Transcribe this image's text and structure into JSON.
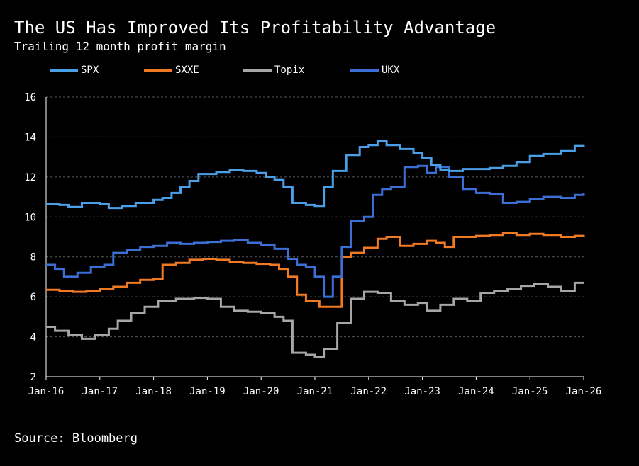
{
  "header": {
    "title": "The US Has Improved Its Profitability Advantage",
    "subtitle": "Trailing 12 month profit margin"
  },
  "footer": {
    "source": "Source: Bloomberg"
  },
  "chart_data": {
    "type": "line",
    "title": "The US Has Improved Its Profitability Advantage",
    "subtitle": "Trailing 12 month profit margin",
    "xlabel": "",
    "ylabel": "",
    "ylim": [
      2,
      16
    ],
    "yticks": [
      2,
      4,
      6,
      8,
      10,
      12,
      14,
      16
    ],
    "xlim": [
      "2016-01",
      "2026-01"
    ],
    "xticks": [
      "Jan-16",
      "Jan-17",
      "Jan-18",
      "Jan-19",
      "Jan-20",
      "Jan-21",
      "Jan-22",
      "Jan-23",
      "Jan-24",
      "Jan-25",
      "Jan-26"
    ],
    "grid": "horizontal dashed",
    "legend": "top-left",
    "series": [
      {
        "name": "SPX",
        "color": "#4a9fe6",
        "points": [
          [
            "2016-01",
            10.65
          ],
          [
            "2016-04",
            10.6
          ],
          [
            "2016-06",
            10.5
          ],
          [
            "2016-09",
            10.7
          ],
          [
            "2017-01",
            10.65
          ],
          [
            "2017-03",
            10.45
          ],
          [
            "2017-06",
            10.55
          ],
          [
            "2017-09",
            10.7
          ],
          [
            "2018-01",
            10.85
          ],
          [
            "2018-03",
            10.95
          ],
          [
            "2018-05",
            11.2
          ],
          [
            "2018-07",
            11.5
          ],
          [
            "2018-09",
            11.8
          ],
          [
            "2018-11",
            12.15
          ],
          [
            "2019-03",
            12.25
          ],
          [
            "2019-06",
            12.35
          ],
          [
            "2019-09",
            12.3
          ],
          [
            "2019-12",
            12.2
          ],
          [
            "2020-02",
            12.0
          ],
          [
            "2020-04",
            11.85
          ],
          [
            "2020-06",
            11.5
          ],
          [
            "2020-08",
            10.7
          ],
          [
            "2020-11",
            10.6
          ],
          [
            "2021-01",
            10.55
          ],
          [
            "2021-03",
            11.5
          ],
          [
            "2021-05",
            12.3
          ],
          [
            "2021-08",
            13.1
          ],
          [
            "2021-11",
            13.5
          ],
          [
            "2022-01",
            13.6
          ],
          [
            "2022-03",
            13.8
          ],
          [
            "2022-05",
            13.6
          ],
          [
            "2022-08",
            13.4
          ],
          [
            "2022-11",
            13.2
          ],
          [
            "2023-01",
            12.95
          ],
          [
            "2023-03",
            12.6
          ],
          [
            "2023-05",
            12.35
          ],
          [
            "2023-07",
            12.3
          ],
          [
            "2023-10",
            12.4
          ],
          [
            "2024-01",
            12.4
          ],
          [
            "2024-04",
            12.45
          ],
          [
            "2024-07",
            12.55
          ],
          [
            "2024-10",
            12.75
          ],
          [
            "2025-01",
            13.05
          ],
          [
            "2025-04",
            13.15
          ],
          [
            "2025-08",
            13.3
          ],
          [
            "2025-11",
            13.55
          ],
          [
            "2026-01",
            13.6
          ]
        ]
      },
      {
        "name": "SXXE",
        "color": "#f07a24",
        "points": [
          [
            "2016-01",
            6.35
          ],
          [
            "2016-04",
            6.3
          ],
          [
            "2016-07",
            6.25
          ],
          [
            "2016-10",
            6.3
          ],
          [
            "2017-01",
            6.4
          ],
          [
            "2017-04",
            6.5
          ],
          [
            "2017-07",
            6.7
          ],
          [
            "2017-10",
            6.85
          ],
          [
            "2018-01",
            6.9
          ],
          [
            "2018-03",
            7.6
          ],
          [
            "2018-06",
            7.7
          ],
          [
            "2018-09",
            7.85
          ],
          [
            "2018-12",
            7.9
          ],
          [
            "2019-03",
            7.85
          ],
          [
            "2019-06",
            7.75
          ],
          [
            "2019-09",
            7.7
          ],
          [
            "2019-12",
            7.65
          ],
          [
            "2020-03",
            7.6
          ],
          [
            "2020-05",
            7.4
          ],
          [
            "2020-07",
            7.0
          ],
          [
            "2020-09",
            6.1
          ],
          [
            "2020-11",
            5.8
          ],
          [
            "2021-02",
            5.5
          ],
          [
            "2021-05",
            5.5
          ],
          [
            "2021-07",
            8.0
          ],
          [
            "2021-09",
            8.2
          ],
          [
            "2021-12",
            8.45
          ],
          [
            "2022-03",
            8.9
          ],
          [
            "2022-05",
            9.0
          ],
          [
            "2022-08",
            8.55
          ],
          [
            "2022-11",
            8.65
          ],
          [
            "2023-02",
            8.8
          ],
          [
            "2023-04",
            8.7
          ],
          [
            "2023-06",
            8.5
          ],
          [
            "2023-08",
            9.0
          ],
          [
            "2024-01",
            9.05
          ],
          [
            "2024-04",
            9.1
          ],
          [
            "2024-07",
            9.2
          ],
          [
            "2024-10",
            9.1
          ],
          [
            "2025-01",
            9.15
          ],
          [
            "2025-04",
            9.1
          ],
          [
            "2025-08",
            9.0
          ],
          [
            "2025-11",
            9.05
          ],
          [
            "2026-01",
            9.1
          ]
        ]
      },
      {
        "name": "Topix",
        "color": "#a6a6a6",
        "points": [
          [
            "2016-01",
            4.5
          ],
          [
            "2016-03",
            4.3
          ],
          [
            "2016-06",
            4.1
          ],
          [
            "2016-09",
            3.9
          ],
          [
            "2016-12",
            4.1
          ],
          [
            "2017-03",
            4.4
          ],
          [
            "2017-05",
            4.8
          ],
          [
            "2017-08",
            5.2
          ],
          [
            "2017-11",
            5.5
          ],
          [
            "2018-02",
            5.8
          ],
          [
            "2018-06",
            5.9
          ],
          [
            "2018-10",
            5.95
          ],
          [
            "2019-01",
            5.9
          ],
          [
            "2019-04",
            5.5
          ],
          [
            "2019-07",
            5.3
          ],
          [
            "2019-10",
            5.25
          ],
          [
            "2020-01",
            5.2
          ],
          [
            "2020-04",
            5.0
          ],
          [
            "2020-06",
            4.8
          ],
          [
            "2020-08",
            3.2
          ],
          [
            "2020-11",
            3.1
          ],
          [
            "2021-01",
            3.0
          ],
          [
            "2021-03",
            3.4
          ],
          [
            "2021-06",
            4.7
          ],
          [
            "2021-09",
            5.9
          ],
          [
            "2021-12",
            6.25
          ],
          [
            "2022-03",
            6.2
          ],
          [
            "2022-06",
            5.8
          ],
          [
            "2022-09",
            5.6
          ],
          [
            "2022-12",
            5.7
          ],
          [
            "2023-02",
            5.3
          ],
          [
            "2023-05",
            5.6
          ],
          [
            "2023-08",
            5.9
          ],
          [
            "2023-11",
            5.8
          ],
          [
            "2024-02",
            6.2
          ],
          [
            "2024-05",
            6.3
          ],
          [
            "2024-08",
            6.4
          ],
          [
            "2024-11",
            6.55
          ],
          [
            "2025-02",
            6.65
          ],
          [
            "2025-05",
            6.5
          ],
          [
            "2025-08",
            6.3
          ],
          [
            "2025-11",
            6.7
          ],
          [
            "2026-01",
            6.7
          ]
        ]
      },
      {
        "name": "UKX",
        "color": "#3c6fd6",
        "points": [
          [
            "2016-01",
            7.6
          ],
          [
            "2016-03",
            7.4
          ],
          [
            "2016-05",
            7.0
          ],
          [
            "2016-08",
            7.2
          ],
          [
            "2016-11",
            7.5
          ],
          [
            "2017-02",
            7.6
          ],
          [
            "2017-04",
            8.2
          ],
          [
            "2017-07",
            8.35
          ],
          [
            "2017-10",
            8.5
          ],
          [
            "2018-01",
            8.55
          ],
          [
            "2018-04",
            8.7
          ],
          [
            "2018-07",
            8.65
          ],
          [
            "2018-10",
            8.7
          ],
          [
            "2019-01",
            8.75
          ],
          [
            "2019-04",
            8.8
          ],
          [
            "2019-07",
            8.85
          ],
          [
            "2019-10",
            8.7
          ],
          [
            "2020-01",
            8.6
          ],
          [
            "2020-04",
            8.4
          ],
          [
            "2020-07",
            7.9
          ],
          [
            "2020-09",
            7.6
          ],
          [
            "2020-11",
            7.5
          ],
          [
            "2021-01",
            7.0
          ],
          [
            "2021-03",
            6.0
          ],
          [
            "2021-05",
            7.0
          ],
          [
            "2021-07",
            8.5
          ],
          [
            "2021-09",
            9.8
          ],
          [
            "2021-12",
            10.0
          ],
          [
            "2022-02",
            11.1
          ],
          [
            "2022-04",
            11.4
          ],
          [
            "2022-06",
            11.5
          ],
          [
            "2022-09",
            12.5
          ],
          [
            "2022-12",
            12.55
          ],
          [
            "2023-02",
            12.2
          ],
          [
            "2023-04",
            12.5
          ],
          [
            "2023-07",
            12.0
          ],
          [
            "2023-10",
            11.4
          ],
          [
            "2024-01",
            11.2
          ],
          [
            "2024-04",
            11.15
          ],
          [
            "2024-07",
            10.7
          ],
          [
            "2024-10",
            10.75
          ],
          [
            "2025-01",
            10.9
          ],
          [
            "2025-04",
            11.0
          ],
          [
            "2025-08",
            10.95
          ],
          [
            "2025-11",
            11.1
          ],
          [
            "2026-01",
            11.2
          ]
        ]
      }
    ]
  }
}
